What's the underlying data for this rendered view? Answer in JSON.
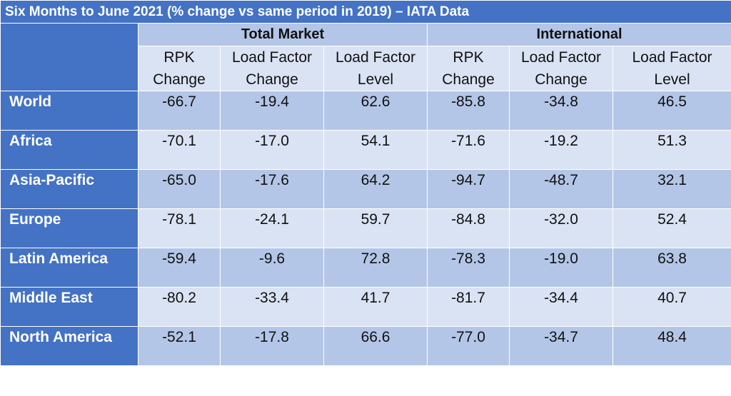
{
  "title": "Six Months to June 2021 (% change vs same period in 2019) – IATA Data",
  "groups": [
    "Total Market",
    "International"
  ],
  "columns": [
    [
      "RPK",
      "Change"
    ],
    [
      "Load Factor",
      "Change"
    ],
    [
      "Load Factor",
      "Level"
    ],
    [
      "RPK",
      "Change"
    ],
    [
      "Load Factor",
      "Change"
    ],
    [
      "Load Factor",
      "Level"
    ]
  ],
  "rows": [
    {
      "region": "World",
      "values": [
        "-66.7",
        "-19.4",
        "62.6",
        "-85.8",
        "-34.8",
        "46.5"
      ]
    },
    {
      "region": "Africa",
      "values": [
        "-70.1",
        "-17.0",
        "54.1",
        "-71.6",
        "-19.2",
        "51.3"
      ]
    },
    {
      "region": "Asia-Pacific",
      "values": [
        "-65.0",
        "-17.6",
        "64.2",
        "-94.7",
        "-48.7",
        "32.1"
      ]
    },
    {
      "region": "Europe",
      "values": [
        "-78.1",
        "-24.1",
        "59.7",
        "-84.8",
        "-32.0",
        "52.4"
      ]
    },
    {
      "region": "Latin America",
      "values": [
        "-59.4",
        "-9.6",
        "72.8",
        "-78.3",
        "-19.0",
        "63.8"
      ]
    },
    {
      "region": "Middle East",
      "values": [
        "-80.2",
        "-33.4",
        "41.7",
        "-81.7",
        "-34.4",
        "40.7"
      ]
    },
    {
      "region": "North America",
      "values": [
        "-52.1",
        "-17.8",
        "66.6",
        "-77.0",
        "-34.7",
        "48.4"
      ]
    }
  ],
  "colors": {
    "header_blue": "#4472c4",
    "band_dark": "#b4c6e7",
    "band_light": "#dae3f3"
  }
}
